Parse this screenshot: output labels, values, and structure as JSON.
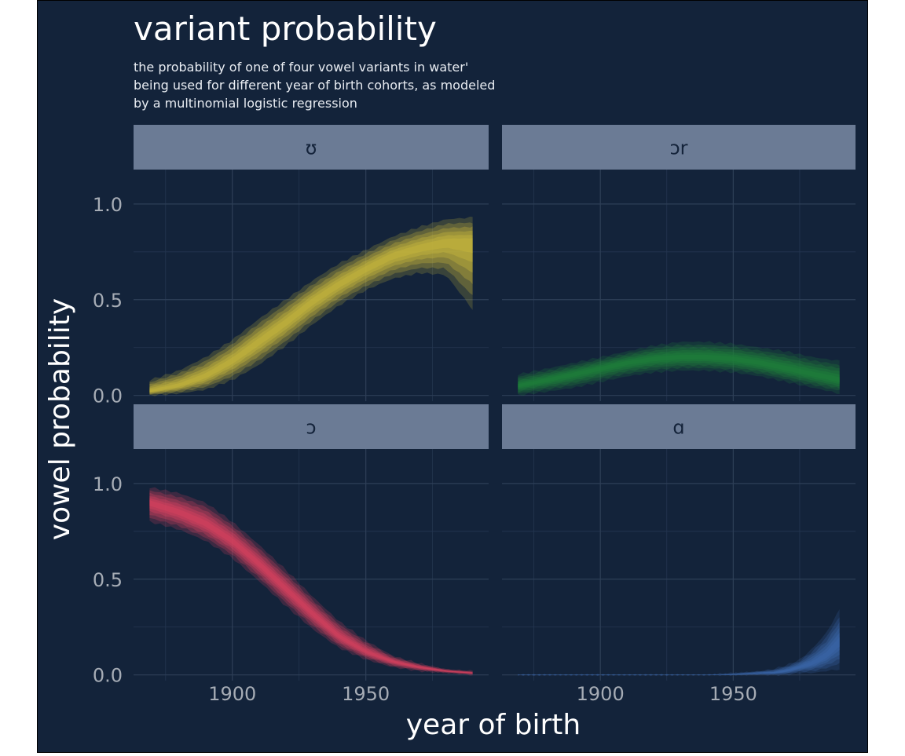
{
  "chart_data": {
    "type": "area",
    "title": "variant probability",
    "subtitle": [
      "the probability of one of four vowel variants in water'",
      "being used for different year of birth cohorts, as modeled",
      "by a multinomial logistic regression"
    ],
    "xlabel": "year of birth",
    "ylabel": "vowel probability",
    "xlim": [
      1863,
      1996
    ],
    "ylim": [
      -0.03,
      1.18
    ],
    "x_ticks": [
      1900,
      1950
    ],
    "y_ticks": [
      0.0,
      0.5,
      1.0
    ],
    "y_tick_labels": [
      "0.0",
      "0.5",
      "1.0"
    ],
    "x_range_data": [
      1869,
      1990
    ],
    "grid": true,
    "panels": [
      {
        "label": "ʊ",
        "color": "#c4b43c",
        "x": [
          1869,
          1880,
          1890,
          1900,
          1910,
          1920,
          1930,
          1940,
          1950,
          1960,
          1970,
          1980,
          1990
        ],
        "mid": [
          0.02,
          0.05,
          0.1,
          0.18,
          0.28,
          0.38,
          0.49,
          0.58,
          0.66,
          0.73,
          0.77,
          0.8,
          0.8
        ],
        "lower": [
          0.0,
          0.01,
          0.03,
          0.08,
          0.16,
          0.26,
          0.37,
          0.47,
          0.55,
          0.61,
          0.64,
          0.63,
          0.45
        ],
        "upper": [
          0.08,
          0.13,
          0.2,
          0.29,
          0.4,
          0.5,
          0.6,
          0.69,
          0.76,
          0.83,
          0.88,
          0.92,
          0.93
        ]
      },
      {
        "label": "ɔr",
        "color": "#1f7f3a",
        "x": [
          1869,
          1880,
          1890,
          1900,
          1910,
          1920,
          1930,
          1940,
          1950,
          1960,
          1970,
          1980,
          1990
        ],
        "mid": [
          0.05,
          0.08,
          0.11,
          0.14,
          0.17,
          0.19,
          0.2,
          0.2,
          0.19,
          0.17,
          0.14,
          0.11,
          0.08
        ],
        "lower": [
          0.0,
          0.02,
          0.04,
          0.07,
          0.1,
          0.12,
          0.13,
          0.13,
          0.12,
          0.1,
          0.07,
          0.04,
          0.01
        ],
        "upper": [
          0.11,
          0.14,
          0.17,
          0.2,
          0.23,
          0.26,
          0.28,
          0.28,
          0.27,
          0.25,
          0.23,
          0.2,
          0.18
        ]
      },
      {
        "label": "ɔ",
        "color": "#d4415e",
        "x": [
          1869,
          1880,
          1890,
          1900,
          1910,
          1920,
          1930,
          1940,
          1950,
          1960,
          1970,
          1980,
          1990
        ],
        "mid": [
          0.9,
          0.85,
          0.79,
          0.7,
          0.58,
          0.45,
          0.32,
          0.2,
          0.12,
          0.07,
          0.04,
          0.02,
          0.01
        ],
        "lower": [
          0.8,
          0.76,
          0.7,
          0.61,
          0.49,
          0.36,
          0.24,
          0.14,
          0.08,
          0.04,
          0.02,
          0.01,
          0.0
        ],
        "upper": [
          0.98,
          0.95,
          0.9,
          0.8,
          0.68,
          0.55,
          0.41,
          0.28,
          0.18,
          0.1,
          0.06,
          0.03,
          0.02
        ]
      },
      {
        "label": "ɑ",
        "color": "#3a66a8",
        "x": [
          1869,
          1900,
          1930,
          1940,
          1950,
          1960,
          1965,
          1970,
          1975,
          1980,
          1985,
          1990
        ],
        "mid": [
          0.0,
          0.0,
          0.0,
          0.0,
          0.0,
          0.01,
          0.01,
          0.02,
          0.04,
          0.06,
          0.1,
          0.17
        ],
        "lower": [
          0.0,
          0.0,
          0.0,
          0.0,
          0.0,
          0.0,
          0.0,
          0.0,
          0.01,
          0.01,
          0.02,
          0.03
        ],
        "upper": [
          0.0,
          0.0,
          0.0,
          0.0,
          0.01,
          0.02,
          0.03,
          0.05,
          0.08,
          0.14,
          0.22,
          0.34
        ]
      }
    ]
  }
}
